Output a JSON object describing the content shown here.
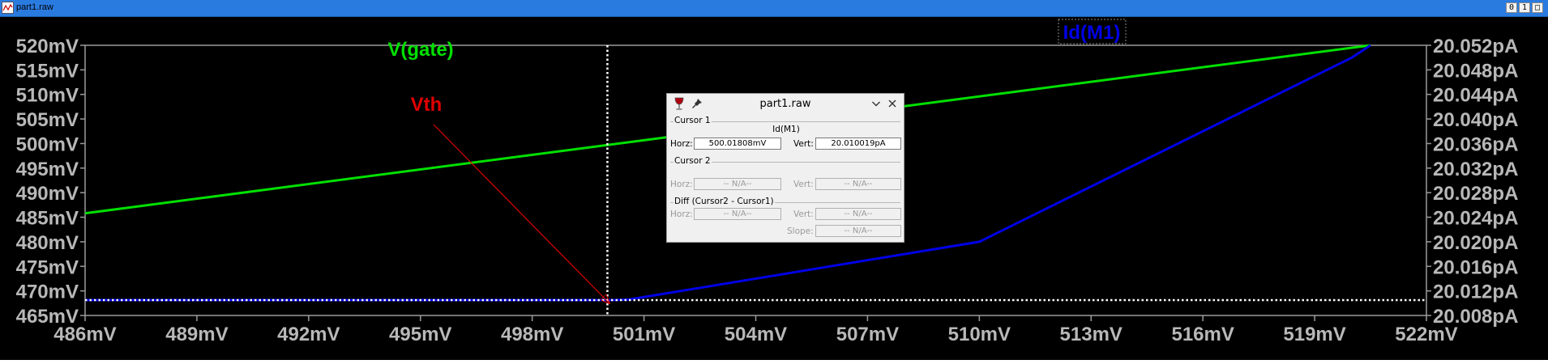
{
  "window": {
    "title": "part1.raw",
    "buttons": [
      "0",
      "1",
      "□"
    ]
  },
  "traces": {
    "left_label": "V(gate)",
    "left_color": "#00e000",
    "right_label": "Id(M1)",
    "right_color": "#0000e6"
  },
  "annotation": {
    "text": "Vth",
    "color": "#e00000"
  },
  "axes": {
    "x_ticks": [
      "486mV",
      "489mV",
      "492mV",
      "495mV",
      "498mV",
      "501mV",
      "504mV",
      "507mV",
      "510mV",
      "513mV",
      "516mV",
      "519mV",
      "522mV"
    ],
    "left_ticks": [
      "520mV",
      "515mV",
      "510mV",
      "505mV",
      "500mV",
      "495mV",
      "490mV",
      "485mV",
      "480mV",
      "475mV",
      "470mV",
      "465mV"
    ],
    "right_ticks": [
      "20.052pA",
      "20.048pA",
      "20.044pA",
      "20.040pA",
      "20.036pA",
      "20.032pA",
      "20.028pA",
      "20.024pA",
      "20.020pA",
      "20.016pA",
      "20.012pA",
      "20.008pA"
    ]
  },
  "chart_data": {
    "type": "line",
    "x_range": [
      486,
      522
    ],
    "series": [
      {
        "name": "V(gate)",
        "axis": "left",
        "unit": "mV",
        "color": "#00e000",
        "points": [
          [
            486,
            485.8
          ],
          [
            520.5,
            520
          ]
        ]
      },
      {
        "name": "Id(M1)",
        "axis": "right",
        "unit": "pA",
        "color": "#0000e6",
        "points": [
          [
            486,
            20.0105
          ],
          [
            500.2,
            20.0105
          ],
          [
            500.6,
            20.0106
          ],
          [
            510,
            20.02
          ],
          [
            520,
            20.05
          ],
          [
            520.5,
            20.052
          ]
        ]
      }
    ],
    "left_ylim": [
      465,
      520
    ],
    "right_ylim": [
      20.008,
      20.052
    ],
    "cursor_x": 500.018
  },
  "cursor_dialog": {
    "title": "part1.raw",
    "cursor1": {
      "label": "Cursor 1",
      "trace": "Id(M1)",
      "horz_label": "Horz:",
      "horz": "500.01808mV",
      "vert_label": "Vert:",
      "vert": "20.010019pA"
    },
    "cursor2": {
      "label": "Cursor 2",
      "horz_label": "Horz:",
      "horz": "-- N/A--",
      "vert_label": "Vert:",
      "vert": "-- N/A--"
    },
    "diff": {
      "label": "Diff (Cursor2 - Cursor1)",
      "horz_label": "Horz:",
      "horz": "-- N/A--",
      "vert_label": "Vert:",
      "vert": "-- N/A--",
      "slope_label": "Slope:",
      "slope": "-- N/A--"
    }
  }
}
